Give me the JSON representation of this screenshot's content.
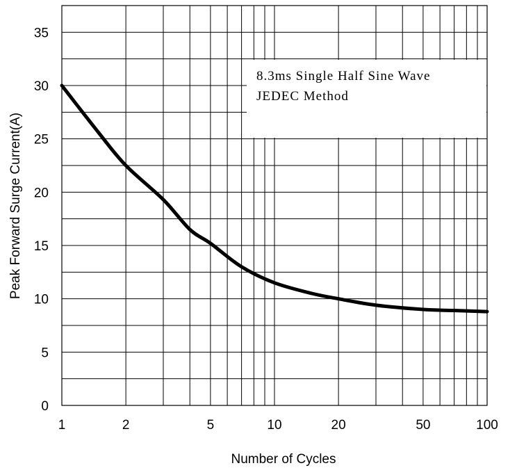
{
  "chart_data": {
    "type": "line",
    "title": "",
    "xlabel": "Number of Cycles",
    "ylabel": "Peak Forward Surge Current(A)",
    "x_scale": "log",
    "xlim": [
      1,
      100
    ],
    "ylim": [
      0,
      37.5
    ],
    "x_ticks": [
      1,
      2,
      5,
      10,
      20,
      50,
      100
    ],
    "x_tick_labels": [
      "1",
      "2",
      "5",
      "10",
      "20",
      "50",
      "100"
    ],
    "y_ticks": [
      0,
      5,
      10,
      15,
      20,
      25,
      30,
      35
    ],
    "y_tick_labels": [
      "0",
      "5",
      "10",
      "15",
      "20",
      "25",
      "30",
      "35"
    ],
    "grid": true,
    "annotation": {
      "line1": "8.3ms Single Half Sine Wave",
      "line2": "JEDEC Method",
      "position": "top-right"
    },
    "series": [
      {
        "x": [
          1,
          1.5,
          2,
          3,
          4,
          5,
          7,
          10,
          15,
          20,
          30,
          50,
          70,
          100
        ],
        "y": [
          30,
          25.5,
          22.5,
          19.3,
          16.5,
          15.2,
          13.0,
          11.5,
          10.5,
          10.0,
          9.4,
          9.0,
          8.9,
          8.8
        ]
      }
    ]
  }
}
